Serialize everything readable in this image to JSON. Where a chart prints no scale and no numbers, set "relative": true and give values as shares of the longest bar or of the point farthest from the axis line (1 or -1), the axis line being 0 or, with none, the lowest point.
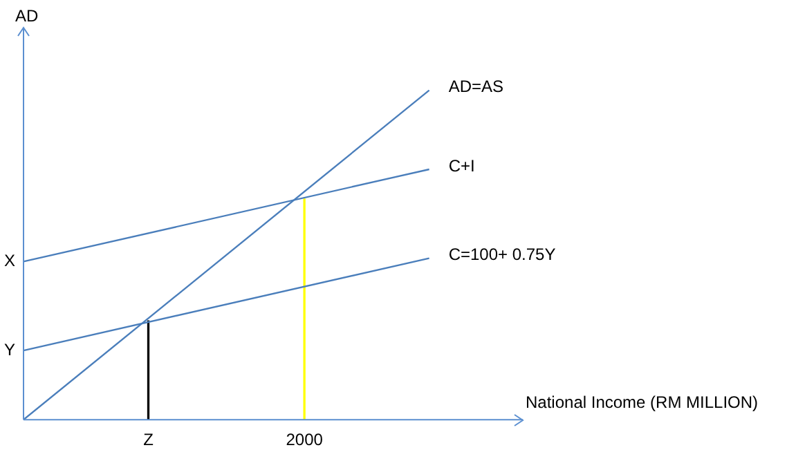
{
  "chart_data": {
    "type": "line",
    "relative": true,
    "xlabel": "National Income (RM MILLION)",
    "ylabel": "AD",
    "categories": [
      null,
      null,
      null,
      null,
      "Z",
      null,
      null,
      null,
      null,
      "2000",
      null,
      null,
      null,
      null,
      null,
      null,
      null
    ],
    "grid": false,
    "legend": false,
    "marker": "none",
    "line_style": "solid",
    "series": [
      {
        "name": "AD=AS",
        "color": "#4a7ebb",
        "values": [
          0,
          null,
          null,
          null,
          null,
          null,
          null,
          null,
          null,
          null,
          null,
          null,
          null,
          1,
          null,
          null,
          null
        ]
      },
      {
        "name": "C+I",
        "color": "#4a7ebb",
        "values": [
          0.48,
          null,
          null,
          null,
          null,
          null,
          null,
          null,
          null,
          null,
          null,
          null,
          null,
          0.76,
          null,
          null,
          null
        ]
      },
      {
        "name": "C=100+ 0.75Y",
        "color": "#4a7ebb",
        "values": [
          0.21,
          null,
          null,
          null,
          null,
          null,
          null,
          null,
          null,
          null,
          null,
          null,
          null,
          0.49,
          null,
          null,
          null
        ]
      },
      {
        "type": "bar",
        "color": "#000000",
        "values": [
          null,
          null,
          null,
          null,
          0.3,
          null,
          null,
          null,
          null,
          null,
          null,
          null,
          null,
          null,
          null,
          null,
          null
        ]
      },
      {
        "type": "bar",
        "color": "#ffff00",
        "values": [
          null,
          null,
          null,
          null,
          null,
          null,
          null,
          null,
          null,
          0.67,
          null,
          null,
          null,
          null,
          null,
          null,
          null
        ]
      }
    ],
    "annotations": [
      "X",
      "Y"
    ]
  }
}
